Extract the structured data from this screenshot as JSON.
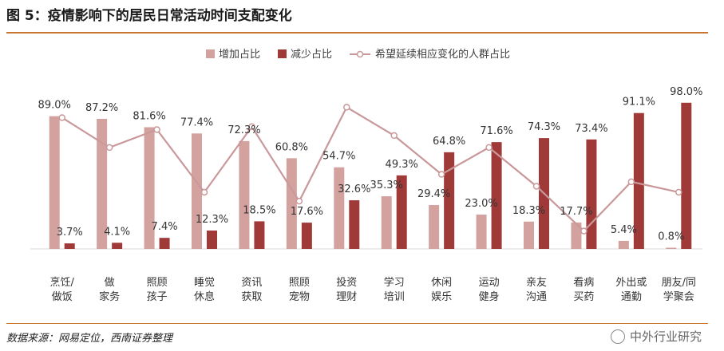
{
  "header": {
    "title": "图 5：疫情影响下的居民日常活动时间支配变化"
  },
  "footer": {
    "source": "数据来源：网易定位，西南证券整理",
    "watermark": "中外行业研究"
  },
  "chart_data": {
    "type": "bar",
    "categories": [
      [
        "烹饪/",
        "做饭"
      ],
      [
        "做",
        "家务"
      ],
      [
        "照顾",
        "孩子"
      ],
      [
        "睡觉",
        "休息"
      ],
      [
        "资讯",
        "获取"
      ],
      [
        "照顾",
        "宠物"
      ],
      [
        "投资",
        "理财"
      ],
      [
        "学习",
        "培训"
      ],
      [
        "休闲",
        "娱乐"
      ],
      [
        "运动",
        "健身"
      ],
      [
        "亲友",
        "沟通"
      ],
      [
        "看病",
        "买药"
      ],
      [
        "外出或",
        "通勤"
      ],
      [
        "朋友/同",
        "学聚会"
      ]
    ],
    "series": [
      {
        "name": "增加占比",
        "type": "bar",
        "color": "#d4a29e",
        "values": [
          89.0,
          87.2,
          81.6,
          77.4,
          72.3,
          60.8,
          54.7,
          35.3,
          29.4,
          23.0,
          18.3,
          17.7,
          5.4,
          0.8
        ],
        "labels": [
          "89.0%",
          "87.2%",
          "81.6%",
          "77.4%",
          "72.3%",
          "60.8%",
          "54.7%",
          "35.3%",
          "29.4%",
          "23.0%",
          "18.3%",
          "17.7%",
          "5.4%",
          "0.8%"
        ]
      },
      {
        "name": "减少占比",
        "type": "bar",
        "color": "#a03a39",
        "values": [
          3.7,
          4.1,
          7.4,
          12.3,
          18.5,
          17.6,
          32.6,
          49.3,
          64.8,
          71.6,
          74.3,
          73.4,
          91.1,
          98.0
        ],
        "labels": [
          "3.7%",
          "4.1%",
          "7.4%",
          "12.3%",
          "18.5%",
          "17.6%",
          "32.6%",
          "49.3%",
          "64.8%",
          "71.6%",
          "74.3%",
          "73.4%",
          "91.1%",
          "98.0%"
        ]
      },
      {
        "name": "希望延续相应变化的人群占比",
        "type": "line",
        "color": "#c9989a",
        "values": [
          88,
          68,
          80,
          38,
          82,
          32,
          95,
          76,
          50,
          68,
          42,
          12,
          45,
          38
        ]
      }
    ],
    "ylim": [
      0,
      110
    ],
    "legend": "top-center",
    "grid": false
  }
}
